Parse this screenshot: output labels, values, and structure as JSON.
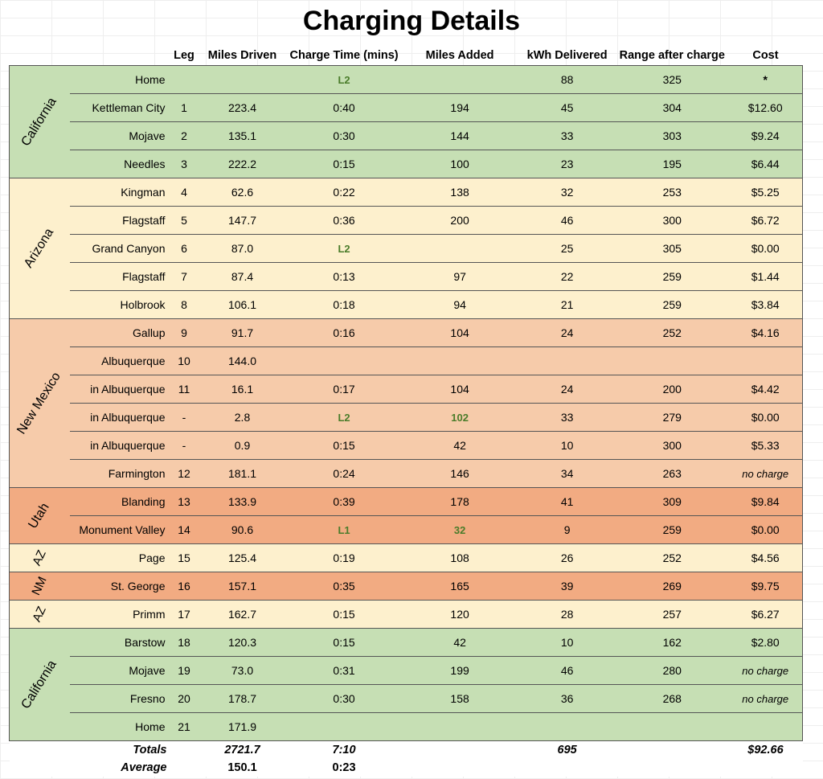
{
  "title": "Charging Details",
  "headers": [
    "",
    "",
    "Leg",
    "Miles Driven",
    "Charge Time (mins)",
    "Miles Added",
    "kWh Delivered",
    "Range after charge",
    "Cost"
  ],
  "groups": [
    {
      "state": "California",
      "color": "#c6dfb4",
      "rows": [
        {
          "location": "Home",
          "leg": "",
          "miles": "",
          "time": "L2",
          "added": "",
          "kwh": "88",
          "range": "325",
          "cost": "*"
        },
        {
          "location": "Kettleman City",
          "leg": "1",
          "miles": "223.4",
          "time": "0:40",
          "added": "194",
          "kwh": "45",
          "range": "304",
          "cost": "$12.60"
        },
        {
          "location": "Mojave",
          "leg": "2",
          "miles": "135.1",
          "time": "0:30",
          "added": "144",
          "kwh": "33",
          "range": "303",
          "cost": "$9.24"
        },
        {
          "location": "Needles",
          "leg": "3",
          "miles": "222.2",
          "time": "0:15",
          "added": "100",
          "kwh": "23",
          "range": "195",
          "cost": "$6.44"
        }
      ]
    },
    {
      "state": "Arizona",
      "color": "#fdf0cd",
      "rows": [
        {
          "location": "Kingman",
          "leg": "4",
          "miles": "62.6",
          "time": "0:22",
          "added": "138",
          "kwh": "32",
          "range": "253",
          "cost": "$5.25"
        },
        {
          "location": "Flagstaff",
          "leg": "5",
          "miles": "147.7",
          "time": "0:36",
          "added": "200",
          "kwh": "46",
          "range": "300",
          "cost": "$6.72"
        },
        {
          "location": "Grand Canyon",
          "leg": "6",
          "miles": "87.0",
          "time": "L2",
          "added": "",
          "kwh": "25",
          "range": "305",
          "cost": "$0.00"
        },
        {
          "location": "Flagstaff",
          "leg": "7",
          "miles": "87.4",
          "time": "0:13",
          "added": "97",
          "kwh": "22",
          "range": "259",
          "cost": "$1.44"
        },
        {
          "location": "Holbrook",
          "leg": "8",
          "miles": "106.1",
          "time": "0:18",
          "added": "94",
          "kwh": "21",
          "range": "259",
          "cost": "$3.84"
        }
      ]
    },
    {
      "state": "New Mexico",
      "color": "#f6cbaa",
      "rows": [
        {
          "location": "Gallup",
          "leg": "9",
          "miles": "91.7",
          "time": "0:16",
          "added": "104",
          "kwh": "24",
          "range": "252",
          "cost": "$4.16"
        },
        {
          "location": "Albuquerque",
          "leg": "10",
          "miles": "144.0",
          "time": "",
          "added": "",
          "kwh": "",
          "range": "",
          "cost": ""
        },
        {
          "location": "in Albuquerque",
          "leg": "11",
          "miles": "16.1",
          "time": "0:17",
          "added": "104",
          "kwh": "24",
          "range": "200",
          "cost": "$4.42"
        },
        {
          "location": "in Albuquerque",
          "leg": "-",
          "miles": "2.8",
          "time": "L2",
          "added": "102",
          "kwh": "33",
          "range": "279",
          "cost": "$0.00"
        },
        {
          "location": "in Albuquerque",
          "leg": "-",
          "miles": "0.9",
          "time": "0:15",
          "added": "42",
          "kwh": "10",
          "range": "300",
          "cost": "$5.33"
        },
        {
          "location": "Farmington",
          "leg": "12",
          "miles": "181.1",
          "time": "0:24",
          "added": "146",
          "kwh": "34",
          "range": "263",
          "cost": "no charge"
        }
      ]
    },
    {
      "state": "Utah",
      "color": "#f2ab82",
      "rows": [
        {
          "location": "Blanding",
          "leg": "13",
          "miles": "133.9",
          "time": "0:39",
          "added": "178",
          "kwh": "41",
          "range": "309",
          "cost": "$9.84"
        },
        {
          "location": "Monument Valley",
          "leg": "14",
          "miles": "90.6",
          "time": "L1",
          "added": "32",
          "kwh": "9",
          "range": "259",
          "cost": "$0.00"
        }
      ]
    },
    {
      "state": "AZ",
      "color": "#fdf0cd",
      "rows": [
        {
          "location": "Page",
          "leg": "15",
          "miles": "125.4",
          "time": "0:19",
          "added": "108",
          "kwh": "26",
          "range": "252",
          "cost": "$4.56"
        }
      ]
    },
    {
      "state": "NM",
      "color": "#f2ab82",
      "rows": [
        {
          "location": "St. George",
          "leg": "16",
          "miles": "157.1",
          "time": "0:35",
          "added": "165",
          "kwh": "39",
          "range": "269",
          "cost": "$9.75"
        }
      ]
    },
    {
      "state": "AZ",
      "color": "#fdf0cd",
      "rows": [
        {
          "location": "Primm",
          "leg": "17",
          "miles": "162.7",
          "time": "0:15",
          "added": "120",
          "kwh": "28",
          "range": "257",
          "cost": "$6.27"
        }
      ]
    },
    {
      "state": "California",
      "color": "#c6dfb4",
      "rows": [
        {
          "location": "Barstow",
          "leg": "18",
          "miles": "120.3",
          "time": "0:15",
          "added": "42",
          "kwh": "10",
          "range": "162",
          "cost": "$2.80"
        },
        {
          "location": "Mojave",
          "leg": "19",
          "miles": "73.0",
          "time": "0:31",
          "added": "199",
          "kwh": "46",
          "range": "280",
          "cost": "no charge"
        },
        {
          "location": "Fresno",
          "leg": "20",
          "miles": "178.7",
          "time": "0:30",
          "added": "158",
          "kwh": "36",
          "range": "268",
          "cost": "no charge"
        },
        {
          "location": "Home",
          "leg": "21",
          "miles": "171.9",
          "time": "",
          "added": "",
          "kwh": "",
          "range": "",
          "cost": ""
        }
      ]
    }
  ],
  "green_values": [
    "L1",
    "L2",
    "102",
    "32"
  ],
  "totals": {
    "label": "Totals",
    "miles": "2721.7",
    "time": "7:10",
    "kwh": "695",
    "cost": "$92.66"
  },
  "average": {
    "label": "Average",
    "miles": "150.1",
    "time": "0:23"
  }
}
